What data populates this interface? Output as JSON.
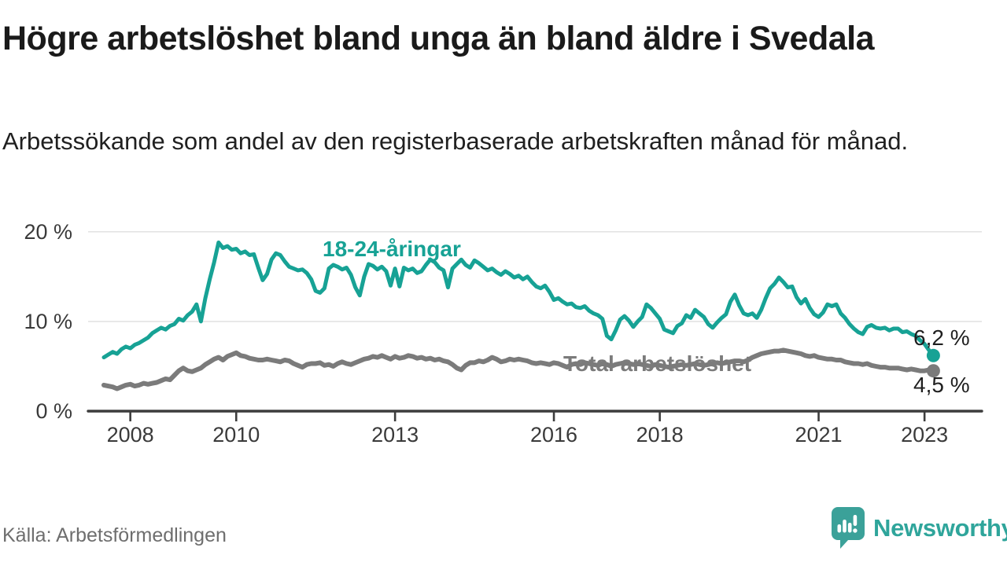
{
  "header": {
    "title": "Högre arbetslöshet bland unga än bland äldre i Svedala",
    "subtitle": "Arbetssökande som andel av den registerbaserade arbetskraften månad för månad."
  },
  "footer": {
    "source": "Källa: Arbetsförmedlingen",
    "brand": "Newsworthy"
  },
  "colors": {
    "teal": "#17a295",
    "gray": "#7b7b7b",
    "axis": "#3d3d3d",
    "axis_text": "#3a3a3a",
    "grid": "#e3e3e3",
    "value_text": "#1f1f1f",
    "logo_teal": "#3ba199",
    "logo_text_teal": "#2fa59b"
  },
  "chart_data": {
    "type": "line",
    "title": "Högre arbetslöshet bland unga än bland äldre i Svedala",
    "subtitle": "Arbetssökande som andel av den registerbaserade arbetskraften månad för månad.",
    "source": "Källa: Arbetsförmedlingen",
    "x_unit": "month",
    "x_start_year": 2008,
    "x_range": [
      "2008-01",
      "2023-09"
    ],
    "x_tick_years": [
      2008,
      2010,
      2013,
      2016,
      2018,
      2021,
      2023
    ],
    "x_tick_labels": [
      "2008",
      "2010",
      "2013",
      "2016",
      "2018",
      "2021",
      "2023"
    ],
    "y_ticks": [
      {
        "value": 0,
        "label": "0 %"
      },
      {
        "value": 10,
        "label": "10 %"
      },
      {
        "value": 20,
        "label": "20 %"
      }
    ],
    "ylim": [
      0,
      21
    ],
    "grid": true,
    "legend_position": "inline-labels",
    "series": [
      {
        "name": "18-24-åringar",
        "color": "#17a295",
        "end_label": "6,2 %",
        "end_value": 6.2,
        "values": [
          6.0,
          6.3,
          6.6,
          6.4,
          6.9,
          7.2,
          7.0,
          7.4,
          7.6,
          7.9,
          8.2,
          8.7,
          9.0,
          9.3,
          9.1,
          9.5,
          9.7,
          10.3,
          10.1,
          10.7,
          11.1,
          11.9,
          10.0,
          12.6,
          14.7,
          16.6,
          18.8,
          18.2,
          18.4,
          18.0,
          18.1,
          17.6,
          17.8,
          17.4,
          17.5,
          16.0,
          14.6,
          15.3,
          16.9,
          17.6,
          17.4,
          16.7,
          16.1,
          15.9,
          15.7,
          15.8,
          15.4,
          14.7,
          13.4,
          13.2,
          13.7,
          15.9,
          16.3,
          16.1,
          15.8,
          16.0,
          15.2,
          13.8,
          12.9,
          15.0,
          16.4,
          16.2,
          15.8,
          16.1,
          15.6,
          14.0,
          15.9,
          13.9,
          16.0,
          15.7,
          15.9,
          15.4,
          15.6,
          16.3,
          16.9,
          16.6,
          16.0,
          15.7,
          13.8,
          15.9,
          16.4,
          16.9,
          16.3,
          16.0,
          16.8,
          16.5,
          16.1,
          15.7,
          15.9,
          15.5,
          15.2,
          15.6,
          15.3,
          14.9,
          15.1,
          14.7,
          15.0,
          14.4,
          13.9,
          13.7,
          14.0,
          13.3,
          12.4,
          12.6,
          12.2,
          11.9,
          12.0,
          11.6,
          11.5,
          11.7,
          11.2,
          10.9,
          10.7,
          10.3,
          8.4,
          8.0,
          9.0,
          10.2,
          10.6,
          10.1,
          9.4,
          10.0,
          10.5,
          11.9,
          11.5,
          10.9,
          10.3,
          9.1,
          8.9,
          8.7,
          9.5,
          9.8,
          10.7,
          10.4,
          11.3,
          10.9,
          10.5,
          9.7,
          9.3,
          9.9,
          10.4,
          10.8,
          12.2,
          13.0,
          11.8,
          10.9,
          10.7,
          10.9,
          10.4,
          11.3,
          12.6,
          13.7,
          14.2,
          14.9,
          14.4,
          13.8,
          13.9,
          12.7,
          12.0,
          12.5,
          11.5,
          10.8,
          10.5,
          11.0,
          11.9,
          11.7,
          11.9,
          10.9,
          10.4,
          9.7,
          9.2,
          8.8,
          8.6,
          9.4,
          9.6,
          9.3,
          9.2,
          9.3,
          9.0,
          9.2,
          9.2,
          8.8,
          8.9,
          8.6,
          8.4,
          7.9,
          7.5,
          6.8,
          6.2
        ]
      },
      {
        "name": "Total arbetslöshet",
        "color": "#7b7b7b",
        "end_label": "4,5 %",
        "end_value": 4.5,
        "values": [
          2.9,
          2.8,
          2.7,
          2.5,
          2.7,
          2.9,
          3.0,
          2.8,
          2.9,
          3.1,
          3.0,
          3.1,
          3.2,
          3.4,
          3.6,
          3.5,
          4.0,
          4.5,
          4.8,
          4.5,
          4.4,
          4.6,
          4.8,
          5.2,
          5.5,
          5.8,
          6.0,
          5.7,
          6.1,
          6.3,
          6.5,
          6.2,
          6.1,
          5.9,
          5.8,
          5.7,
          5.7,
          5.8,
          5.7,
          5.6,
          5.5,
          5.7,
          5.6,
          5.3,
          5.1,
          4.9,
          5.2,
          5.3,
          5.3,
          5.4,
          5.1,
          5.2,
          5.0,
          5.3,
          5.5,
          5.3,
          5.2,
          5.4,
          5.6,
          5.8,
          5.9,
          6.1,
          6.0,
          6.2,
          6.0,
          5.8,
          6.1,
          5.9,
          6.0,
          6.2,
          6.1,
          5.9,
          6.0,
          5.8,
          5.9,
          5.7,
          5.8,
          5.6,
          5.5,
          5.2,
          4.8,
          4.6,
          5.1,
          5.4,
          5.4,
          5.6,
          5.5,
          5.7,
          6.0,
          5.8,
          5.5,
          5.6,
          5.8,
          5.7,
          5.8,
          5.7,
          5.6,
          5.4,
          5.3,
          5.4,
          5.3,
          5.2,
          5.4,
          5.3,
          5.1,
          4.9,
          5.2,
          5.3,
          5.2,
          5.4,
          5.3,
          5.2,
          5.1,
          5.3,
          5.2,
          5.0,
          5.2,
          5.3,
          5.4,
          5.3,
          5.2,
          5.3,
          5.2,
          5.1,
          5.0,
          5.2,
          5.1,
          5.0,
          4.9,
          5.0,
          5.1,
          5.2,
          5.1,
          5.2,
          5.3,
          5.2,
          5.1,
          5.2,
          5.3,
          5.4,
          5.3,
          5.4,
          5.5,
          5.6,
          5.6,
          5.5,
          5.7,
          6.0,
          6.2,
          6.4,
          6.5,
          6.6,
          6.7,
          6.7,
          6.8,
          6.7,
          6.6,
          6.5,
          6.4,
          6.2,
          6.1,
          6.2,
          6.0,
          5.9,
          5.8,
          5.8,
          5.7,
          5.7,
          5.5,
          5.4,
          5.3,
          5.3,
          5.2,
          5.3,
          5.1,
          5.0,
          4.9,
          4.9,
          4.8,
          4.8,
          4.8,
          4.7,
          4.6,
          4.7,
          4.6,
          4.5,
          4.5,
          4.6,
          4.5
        ]
      }
    ]
  }
}
